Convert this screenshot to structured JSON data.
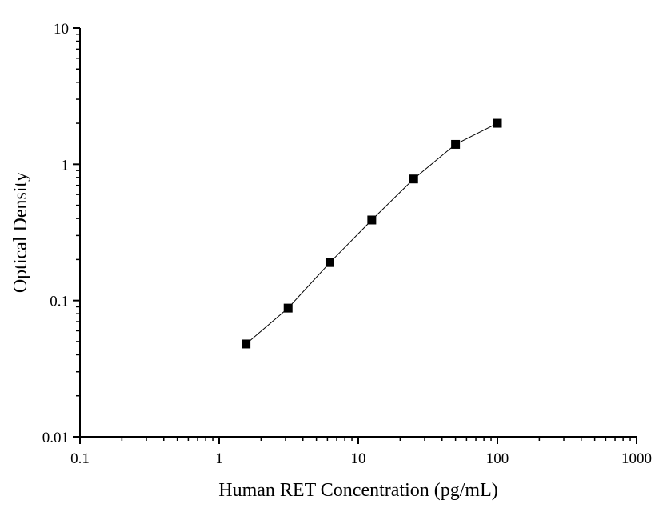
{
  "chart_data": {
    "type": "scatter",
    "title": "",
    "xlabel": "Human RET Concentration (pg/mL)",
    "ylabel": "Optical Density",
    "x_scale": "log",
    "y_scale": "log",
    "xlim": [
      0.1,
      1000
    ],
    "ylim": [
      0.01,
      10
    ],
    "x_ticks": [
      0.1,
      1,
      10,
      100,
      1000
    ],
    "x_tick_labels": [
      "0.1",
      "1",
      "10",
      "100",
      "1000"
    ],
    "y_ticks": [
      0.01,
      0.1,
      1,
      10
    ],
    "y_tick_labels": [
      "0.01",
      "0.1",
      "1",
      "10"
    ],
    "grid": false,
    "connect_points": true,
    "marker": "square",
    "colors": {
      "marker": "#000000",
      "line": "#000000",
      "axis": "#000000"
    },
    "series": [
      {
        "x": [
          1.56,
          3.13,
          6.25,
          12.5,
          25,
          50,
          100
        ],
        "y": [
          0.048,
          0.088,
          0.19,
          0.39,
          0.78,
          1.4,
          2.0
        ]
      }
    ]
  }
}
